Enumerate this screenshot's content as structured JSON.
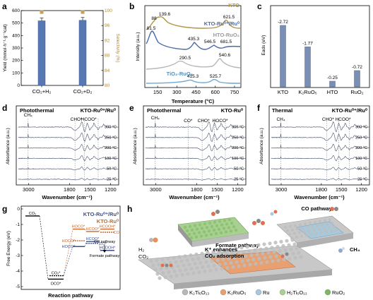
{
  "chart_data": [
    {
      "panel": "a",
      "type": "bar",
      "categories": [
        "CO2+H2",
        "CO2+D2"
      ],
      "values": [
        518,
        522
      ],
      "selectivity": [
        99.6,
        99.6
      ],
      "ylabel": "Yield (mmol·h⁻¹·g⁻¹cat)",
      "y2label": "Selectivity (%)",
      "ylim": [
        0,
        600
      ],
      "y2lim": [
        80,
        100
      ],
      "yticks": [
        0,
        100,
        200,
        300,
        400,
        500,
        600
      ],
      "y2ticks": [
        80,
        84,
        88,
        92,
        96,
        100
      ],
      "colors": {
        "bar": "#5878b4",
        "selectivity": "#c9a05a"
      }
    },
    {
      "panel": "b",
      "type": "line",
      "xlabel": "Temperature (°C)",
      "ylabel": "Intensity (a.u.)",
      "xlim": [
        50,
        800
      ],
      "xticks": [
        150,
        300,
        450,
        600,
        750
      ],
      "series": [
        {
          "name": "KTO",
          "color": "#b29545",
          "peaks": [
            "88",
            "139.6",
            "621.5"
          ]
        },
        {
          "name": "KTO-Ru⁰⁺/Ru⁰",
          "color": "#4a6aa8",
          "peaks": [
            "81.5",
            "435.3",
            "546.5",
            "681.5"
          ]
        },
        {
          "name": "HTO-RuO₂",
          "color": "#b8b8b8",
          "peaks": [
            "290.5",
            "540.6"
          ]
        },
        {
          "name": "TiO₂-RuO₂",
          "color": "#6fa8d0",
          "peaks": [
            "415.3",
            "525.7"
          ]
        }
      ]
    },
    {
      "panel": "c",
      "type": "bar",
      "categories": [
        "KTO",
        "K2RuO5",
        "HTO",
        "RuO2"
      ],
      "values": [
        -2.72,
        -1.77,
        -0.25,
        -0.72
      ],
      "ylabel": "Eads (eV)",
      "colors": {
        "bar": "#7b8fb4"
      }
    },
    {
      "panel": "d",
      "type": "line",
      "title": "Photothermal",
      "sample": "KTO-Ru⁰⁺/Ru⁰",
      "xlabel": "Wavenumber (cm⁻¹)",
      "ylabel": "Absorbance (a.u.)",
      "xticks": [
        3000,
        1800,
        1500,
        1200
      ],
      "series": [
        "300 °C",
        "250 °C",
        "200 °C",
        "100 °C",
        "50 °C",
        "25 °C"
      ],
      "annotations": [
        "CH₄",
        "CHO*",
        "HCOO*"
      ]
    },
    {
      "panel": "e",
      "type": "line",
      "title": "Photothermal",
      "sample": "KTO-Ru⁰",
      "xlabel": "Wavenumber (cm⁻¹)",
      "ylabel": "Absorbance (a.u.)",
      "xticks": [
        3000,
        1800,
        1500,
        1200
      ],
      "series": [
        "300 °C",
        "250 °C",
        "200 °C",
        "100 °C",
        "50 °C",
        "25 °C"
      ],
      "annotations": [
        "CH₄",
        "CO*",
        "CHO*",
        "HOCO*"
      ]
    },
    {
      "panel": "f",
      "type": "line",
      "title": "Thermal",
      "sample": "KTO-Ru⁰⁺/Ru⁰",
      "xlabel": "Wavenumber (cm⁻¹)",
      "ylabel": "Absorbance (a.u.)",
      "xticks": [
        3000,
        1800,
        1500,
        1200
      ],
      "series": [
        "300 °C",
        "250 °C",
        "200 °C",
        "100 °C",
        "50 °C",
        "25 °C"
      ],
      "annotations": [
        "CH₄",
        "CHO*",
        "HCOO*"
      ]
    },
    {
      "panel": "g",
      "type": "line",
      "xlabel": "Reaction pathway",
      "ylabel": "Free Energy (eV)",
      "ylim": [
        -5,
        0
      ],
      "yticks": [
        0,
        -1,
        -2,
        -3,
        -4,
        -5
      ],
      "series": [
        {
          "name": "KTO-Ru⁰⁺/Ru⁰",
          "color": "#3d4f8a"
        },
        {
          "name": "KTO-Ru⁰",
          "color": "#c8682a"
        }
      ],
      "levels": {
        "co2": -0.45,
        "oco_low": -4.52,
        "co2_star": -4.3,
        "orange": {
          "hoco_formate": -1.3,
          "hoco_co": -2.05,
          "co_top": -1.5,
          "hcooh": -1.3,
          "co2": -1.85
        },
        "blue": {
          "hoco": -2.42,
          "hcoo": -2.1,
          "co_mid": -2.22,
          "hcooh": -2.67
        }
      },
      "labels": {
        "co2": "CO₂",
        "oco": "OCO*",
        "co2star": "CO₂*",
        "hoco": "HOCO*",
        "hcoo": "HCOO*",
        "hcooh": "HCOOH*",
        "co": "CO*",
        "co_pathway": "CO pathway",
        "formate_pathway": "Formate pathway"
      }
    }
  ],
  "panels": {
    "a": "a",
    "b": "b",
    "c": "c",
    "d": "d",
    "e": "e",
    "f": "f",
    "g": "g",
    "h": "h"
  },
  "h": {
    "co_pathway": "CO pathway",
    "formate_pathway": "Formate pathway",
    "enhance": "K⁺ enhances",
    "enhance2": "CO₂ adsorption",
    "h2": "H₂",
    "co2": "CO₂",
    "ch4": "CH₄",
    "legend": [
      "K₂Ti₆O₁₃",
      "K₂RuO₅",
      "Ru",
      "H₂Ti₆O₁₃",
      "RuO₂"
    ],
    "legend_colors": [
      "#b8b8b8",
      "#e8a070",
      "#a8c8dc",
      "#a8d090",
      "#7cb860"
    ]
  }
}
